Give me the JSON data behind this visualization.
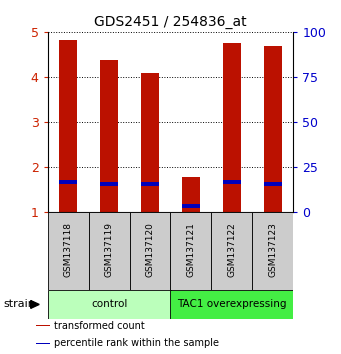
{
  "title": "GDS2451 / 254836_at",
  "samples": [
    "GSM137118",
    "GSM137119",
    "GSM137120",
    "GSM137121",
    "GSM137122",
    "GSM137123"
  ],
  "transformed_counts": [
    4.82,
    4.38,
    4.08,
    1.78,
    4.75,
    4.68
  ],
  "percentile_ranks": [
    1.68,
    1.62,
    1.63,
    1.15,
    1.67,
    1.62
  ],
  "bar_bottom": 1.0,
  "ylim_left": [
    1,
    5
  ],
  "ylim_right": [
    0,
    100
  ],
  "yticks_left": [
    1,
    2,
    3,
    4,
    5
  ],
  "yticks_right": [
    0,
    25,
    50,
    75,
    100
  ],
  "groups": [
    {
      "label": "control",
      "samples": [
        0,
        1,
        2
      ],
      "color": "#bbffbb"
    },
    {
      "label": "TAC1 overexpressing",
      "samples": [
        3,
        4,
        5
      ],
      "color": "#44ee44"
    }
  ],
  "bar_color": "#bb1100",
  "percentile_color": "#0000bb",
  "bar_width": 0.45,
  "tick_label_color_left": "#cc2200",
  "tick_label_color_right": "#0000cc",
  "bg_sample_area": "#cccccc",
  "strain_label": "strain",
  "legend_items": [
    {
      "color": "#bb1100",
      "label": "transformed count"
    },
    {
      "color": "#0000bb",
      "label": "percentile rank within the sample"
    }
  ]
}
